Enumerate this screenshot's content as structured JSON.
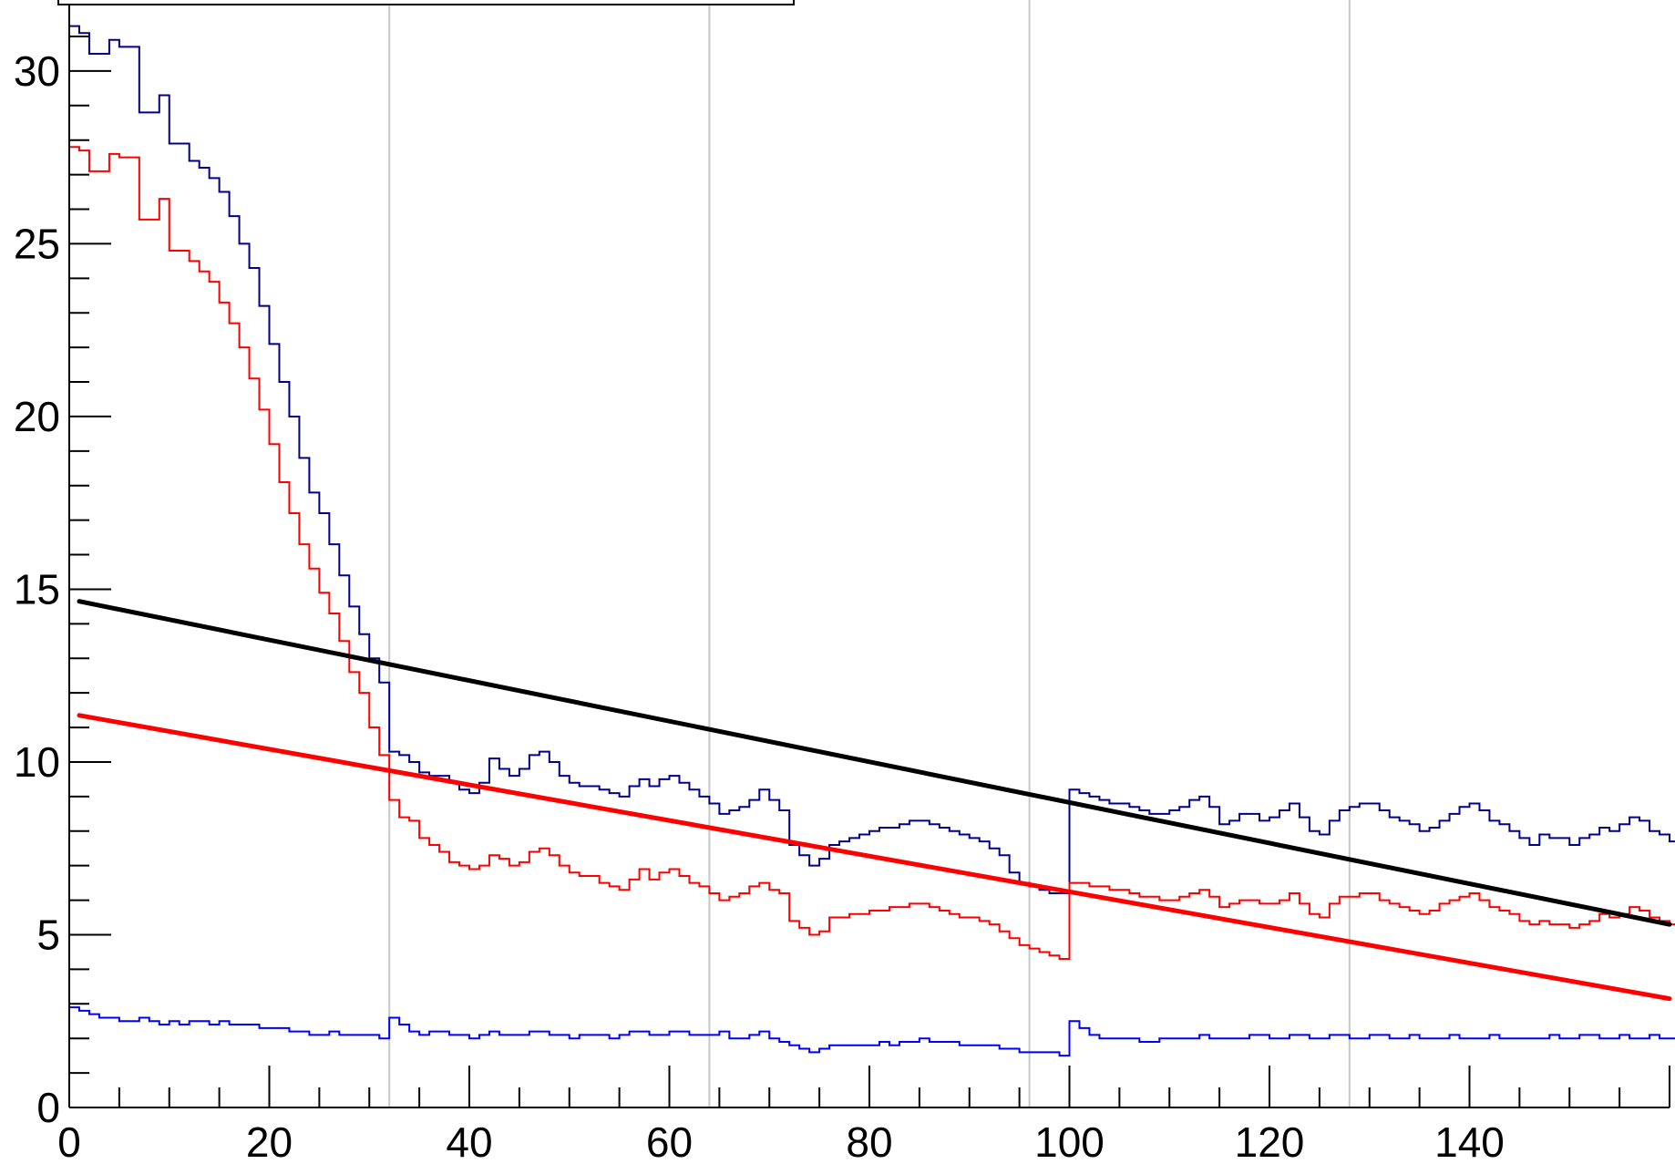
{
  "chart_data": {
    "type": "line",
    "title": "",
    "xlabel": "",
    "ylabel": "",
    "xlim": [
      0,
      160
    ],
    "ylim": [
      0,
      32
    ],
    "x_ticks": [
      0,
      20,
      40,
      60,
      80,
      100,
      120,
      140
    ],
    "y_ticks": [
      0,
      5,
      10,
      15,
      20,
      25,
      30
    ],
    "vertical_gridlines_x": [
      32,
      64,
      96,
      128
    ],
    "grid": "vertical only",
    "legend": "none visible",
    "series": [
      {
        "style": "step",
        "color": "#00008b",
        "bin_width": 1,
        "x_start": 0,
        "values": [
          31.3,
          31.1,
          30.5,
          30.5,
          30.9,
          30.7,
          30.7,
          28.8,
          28.8,
          29.3,
          27.9,
          27.9,
          27.4,
          27.2,
          26.9,
          26.5,
          25.8,
          25.0,
          24.3,
          23.2,
          22.1,
          21.0,
          20.0,
          18.8,
          17.8,
          17.2,
          16.3,
          15.4,
          14.5,
          13.7,
          13.0,
          12.3,
          10.3,
          10.2,
          10.0,
          9.7,
          9.6,
          9.6,
          9.4,
          9.2,
          9.1,
          9.4,
          10.1,
          9.8,
          9.6,
          9.8,
          10.2,
          10.3,
          10.0,
          9.6,
          9.4,
          9.3,
          9.3,
          9.2,
          9.1,
          9.0,
          9.3,
          9.5,
          9.3,
          9.5,
          9.6,
          9.4,
          9.2,
          9.0,
          8.8,
          8.5,
          8.6,
          8.7,
          8.9,
          9.2,
          8.9,
          8.6,
          7.6,
          7.3,
          7.0,
          7.2,
          7.6,
          7.7,
          7.8,
          7.9,
          8.0,
          8.1,
          8.1,
          8.2,
          8.3,
          8.3,
          8.2,
          8.1,
          8.0,
          7.9,
          7.8,
          7.7,
          7.5,
          7.3,
          6.8,
          6.5,
          6.4,
          6.3,
          6.2,
          6.2,
          9.2,
          9.1,
          9.0,
          8.9,
          8.8,
          8.8,
          8.7,
          8.6,
          8.5,
          8.5,
          8.6,
          8.7,
          8.9,
          9.0,
          8.7,
          8.2,
          8.3,
          8.5,
          8.5,
          8.3,
          8.4,
          8.6,
          8.8,
          8.4,
          8.0,
          7.9,
          8.3,
          8.6,
          8.7,
          8.8,
          8.8,
          8.6,
          8.4,
          8.3,
          8.2,
          8.0,
          8.1,
          8.3,
          8.5,
          8.7,
          8.8,
          8.6,
          8.3,
          8.2,
          8.0,
          7.8,
          7.6,
          7.9,
          7.8,
          7.8,
          7.6,
          7.8,
          7.9,
          8.1,
          8.0,
          8.2,
          8.4,
          8.3,
          8.0,
          7.9,
          7.7,
          7.8,
          7.7
        ]
      },
      {
        "style": "step",
        "color": "#ff0000",
        "bin_width": 1,
        "x_start": 0,
        "values": [
          27.8,
          27.7,
          27.1,
          27.1,
          27.6,
          27.5,
          27.5,
          25.7,
          25.7,
          26.3,
          24.8,
          24.8,
          24.5,
          24.2,
          23.9,
          23.3,
          22.7,
          22.0,
          21.1,
          20.2,
          19.2,
          18.1,
          17.2,
          16.3,
          15.6,
          14.9,
          14.3,
          13.5,
          12.6,
          12.0,
          11.0,
          10.2,
          8.9,
          8.4,
          8.3,
          7.8,
          7.6,
          7.4,
          7.1,
          7.0,
          6.9,
          7.0,
          7.3,
          7.2,
          7.0,
          7.1,
          7.4,
          7.5,
          7.3,
          7.0,
          6.8,
          6.7,
          6.7,
          6.5,
          6.4,
          6.3,
          6.6,
          6.9,
          6.6,
          6.8,
          6.9,
          6.7,
          6.5,
          6.4,
          6.2,
          6.0,
          6.1,
          6.2,
          6.4,
          6.5,
          6.3,
          6.2,
          5.4,
          5.2,
          5.0,
          5.1,
          5.5,
          5.5,
          5.6,
          5.6,
          5.7,
          5.7,
          5.8,
          5.8,
          5.9,
          5.9,
          5.8,
          5.7,
          5.6,
          5.5,
          5.5,
          5.4,
          5.3,
          5.1,
          4.9,
          4.7,
          4.6,
          4.5,
          4.4,
          4.3,
          6.5,
          6.5,
          6.4,
          6.4,
          6.3,
          6.3,
          6.2,
          6.1,
          6.1,
          6.0,
          6.0,
          6.1,
          6.2,
          6.3,
          6.1,
          5.8,
          5.9,
          6.0,
          6.0,
          5.9,
          5.9,
          6.0,
          6.2,
          5.9,
          5.6,
          5.5,
          5.9,
          6.1,
          6.1,
          6.2,
          6.2,
          6.0,
          5.9,
          5.8,
          5.7,
          5.6,
          5.7,
          5.9,
          6.0,
          6.1,
          6.2,
          6.0,
          5.8,
          5.7,
          5.6,
          5.4,
          5.3,
          5.4,
          5.3,
          5.3,
          5.2,
          5.3,
          5.4,
          5.6,
          5.5,
          5.6,
          5.8,
          5.7,
          5.5,
          5.4,
          5.3,
          5.3,
          5.1
        ]
      },
      {
        "style": "step",
        "color": "#0000ff",
        "bin_width": 1,
        "x_start": 0,
        "values": [
          2.9,
          2.8,
          2.7,
          2.6,
          2.6,
          2.5,
          2.5,
          2.6,
          2.5,
          2.4,
          2.5,
          2.4,
          2.5,
          2.5,
          2.4,
          2.5,
          2.4,
          2.4,
          2.4,
          2.3,
          2.3,
          2.3,
          2.2,
          2.2,
          2.1,
          2.1,
          2.2,
          2.1,
          2.1,
          2.1,
          2.1,
          2.0,
          2.6,
          2.4,
          2.2,
          2.1,
          2.2,
          2.2,
          2.1,
          2.1,
          2.0,
          2.1,
          2.2,
          2.1,
          2.1,
          2.1,
          2.2,
          2.2,
          2.1,
          2.1,
          2.0,
          2.1,
          2.1,
          2.1,
          2.0,
          2.1,
          2.2,
          2.2,
          2.1,
          2.1,
          2.2,
          2.2,
          2.1,
          2.1,
          2.1,
          2.2,
          2.0,
          2.0,
          2.1,
          2.2,
          2.0,
          1.9,
          1.8,
          1.7,
          1.6,
          1.7,
          1.8,
          1.8,
          1.8,
          1.8,
          1.8,
          1.9,
          1.8,
          1.9,
          1.9,
          2.0,
          1.9,
          1.9,
          1.9,
          1.8,
          1.8,
          1.8,
          1.8,
          1.7,
          1.7,
          1.6,
          1.6,
          1.6,
          1.6,
          1.5,
          2.5,
          2.3,
          2.1,
          2.0,
          2.0,
          2.0,
          2.0,
          1.9,
          1.9,
          2.0,
          2.0,
          2.0,
          2.0,
          2.1,
          2.0,
          2.0,
          2.0,
          2.0,
          2.1,
          2.1,
          2.0,
          2.0,
          2.1,
          2.1,
          2.0,
          2.0,
          2.1,
          2.1,
          2.0,
          2.0,
          2.1,
          2.1,
          2.0,
          2.0,
          2.1,
          2.0,
          2.0,
          2.0,
          2.1,
          2.0,
          2.0,
          2.0,
          2.1,
          2.0,
          2.0,
          2.0,
          2.0,
          2.0,
          2.1,
          2.0,
          2.0,
          2.1,
          2.1,
          2.0,
          2.0,
          2.1,
          2.0,
          2.0,
          2.1,
          2.0,
          2.0,
          2.0
        ]
      },
      {
        "style": "line",
        "color": "#000000",
        "width": 5,
        "x": [
          1,
          160
        ],
        "y": [
          14.65,
          5.3
        ]
      },
      {
        "style": "line",
        "color": "#ff0000",
        "width": 5,
        "x": [
          1,
          160
        ],
        "y": [
          11.35,
          3.15
        ]
      }
    ]
  }
}
